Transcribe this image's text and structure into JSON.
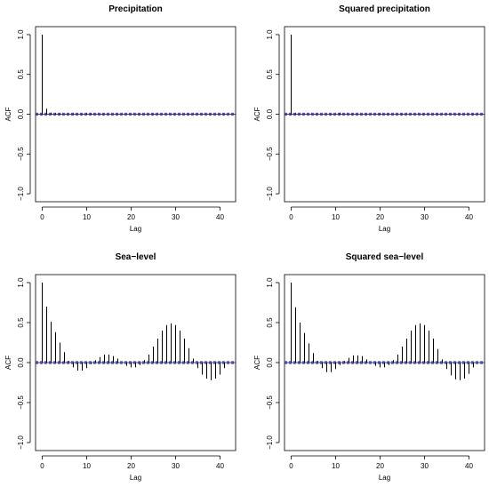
{
  "chart_data": [
    {
      "type": "bar",
      "title": "Precipitation",
      "xlabel": "Lag",
      "ylabel": "ACF",
      "xlim": [
        -1.5,
        43.5
      ],
      "ylim": [
        -1.1,
        1.1
      ],
      "xticks": [
        "0",
        "10",
        "20",
        "30",
        "40"
      ],
      "yticks": [
        "−1.0",
        "−0.5",
        "0.0",
        "0.5",
        "1.0"
      ],
      "confidence_bound": 0.012,
      "x": [
        0,
        1,
        2,
        3,
        4,
        5,
        6,
        7,
        8,
        9,
        10,
        11,
        12,
        13,
        14,
        15,
        16,
        17,
        18,
        19,
        20,
        21,
        22,
        23,
        24,
        25,
        26,
        27,
        28,
        29,
        30,
        31,
        32,
        33,
        34,
        35,
        36,
        37,
        38,
        39,
        40,
        41,
        42,
        43
      ],
      "values": [
        1.0,
        0.07,
        0.02,
        0.01,
        0.01,
        0.0,
        0.0,
        0.01,
        0.0,
        0.0,
        0.01,
        0.01,
        0.0,
        0.0,
        0.0,
        0.0,
        0.0,
        0.0,
        0.0,
        0.0,
        0.0,
        0.0,
        0.0,
        0.0,
        0.0,
        0.0,
        0.0,
        0.0,
        0.0,
        0.0,
        0.0,
        0.0,
        0.0,
        0.0,
        0.0,
        0.0,
        0.0,
        0.0,
        0.0,
        0.0,
        0.0,
        0.0,
        0.0,
        0.0
      ]
    },
    {
      "type": "bar",
      "title": "Squared precipitation",
      "xlabel": "Lag",
      "ylabel": "ACF",
      "xlim": [
        -1.5,
        43.5
      ],
      "ylim": [
        -1.1,
        1.1
      ],
      "xticks": [
        "0",
        "10",
        "20",
        "30",
        "40"
      ],
      "yticks": [
        "−1.0",
        "−0.5",
        "0.0",
        "0.5",
        "1.0"
      ],
      "confidence_bound": 0.012,
      "x": [
        0,
        1,
        2,
        3,
        4,
        5,
        6,
        7,
        8,
        9,
        10,
        11,
        12,
        13,
        14,
        15,
        16,
        17,
        18,
        19,
        20,
        21,
        22,
        23,
        24,
        25,
        26,
        27,
        28,
        29,
        30,
        31,
        32,
        33,
        34,
        35,
        36,
        37,
        38,
        39,
        40,
        41,
        42,
        43
      ],
      "values": [
        1.0,
        0.01,
        0.0,
        0.0,
        0.0,
        0.0,
        0.0,
        0.0,
        0.0,
        0.0,
        0.0,
        0.02,
        0.0,
        0.0,
        0.0,
        0.0,
        0.0,
        0.0,
        0.0,
        0.0,
        0.01,
        0.0,
        0.0,
        0.0,
        0.0,
        0.0,
        0.0,
        0.0,
        0.0,
        0.0,
        0.0,
        0.0,
        0.0,
        0.0,
        0.0,
        0.0,
        0.0,
        0.0,
        0.0,
        0.0,
        0.0,
        0.0,
        0.0,
        0.0
      ]
    },
    {
      "type": "bar",
      "title": "Sea−level",
      "xlabel": "Lag",
      "ylabel": "ACF",
      "xlim": [
        -1.5,
        43.5
      ],
      "ylim": [
        -1.1,
        1.1
      ],
      "xticks": [
        "0",
        "10",
        "20",
        "30",
        "40"
      ],
      "yticks": [
        "−1.0",
        "−0.5",
        "0.0",
        "0.5",
        "1.0"
      ],
      "confidence_bound": 0.012,
      "x": [
        0,
        1,
        2,
        3,
        4,
        5,
        6,
        7,
        8,
        9,
        10,
        11,
        12,
        13,
        14,
        15,
        16,
        17,
        18,
        19,
        20,
        21,
        22,
        23,
        24,
        25,
        26,
        27,
        28,
        29,
        30,
        31,
        32,
        33,
        34,
        35,
        36,
        37,
        38,
        39,
        40,
        41,
        42,
        43
      ],
      "values": [
        1.0,
        0.7,
        0.51,
        0.38,
        0.25,
        0.13,
        0.02,
        -0.06,
        -0.1,
        -0.1,
        -0.07,
        -0.02,
        0.03,
        0.07,
        0.1,
        0.1,
        0.08,
        0.05,
        0.0,
        -0.04,
        -0.06,
        -0.06,
        -0.03,
        0.03,
        0.1,
        0.2,
        0.3,
        0.4,
        0.47,
        0.49,
        0.47,
        0.4,
        0.3,
        0.18,
        0.05,
        -0.07,
        -0.15,
        -0.2,
        -0.22,
        -0.2,
        -0.15,
        -0.07,
        0.0,
        0.0
      ]
    },
    {
      "type": "bar",
      "title": "Squared sea−level",
      "xlabel": "Lag",
      "ylabel": "ACF",
      "xlim": [
        -1.5,
        43.5
      ],
      "ylim": [
        -1.1,
        1.1
      ],
      "xticks": [
        "0",
        "10",
        "20",
        "30",
        "40"
      ],
      "yticks": [
        "−1.0",
        "−0.5",
        "0.0",
        "0.5",
        "1.0"
      ],
      "confidence_bound": 0.012,
      "x": [
        0,
        1,
        2,
        3,
        4,
        5,
        6,
        7,
        8,
        9,
        10,
        11,
        12,
        13,
        14,
        15,
        16,
        17,
        18,
        19,
        20,
        21,
        22,
        23,
        24,
        25,
        26,
        27,
        28,
        29,
        30,
        31,
        32,
        33,
        34,
        35,
        36,
        37,
        38,
        39,
        40,
        41,
        42,
        43
      ],
      "values": [
        1.0,
        0.69,
        0.5,
        0.37,
        0.24,
        0.12,
        0.02,
        -0.07,
        -0.12,
        -0.12,
        -0.08,
        -0.03,
        0.02,
        0.06,
        0.09,
        0.09,
        0.08,
        0.04,
        0.0,
        -0.04,
        -0.06,
        -0.06,
        -0.03,
        0.03,
        0.1,
        0.2,
        0.3,
        0.4,
        0.47,
        0.49,
        0.47,
        0.4,
        0.3,
        0.17,
        0.04,
        -0.08,
        -0.16,
        -0.21,
        -0.22,
        -0.2,
        -0.14,
        -0.06,
        0.0,
        0.0
      ]
    }
  ],
  "colors": {
    "bars": "#000000",
    "confidence_band": "#3b3bd6",
    "zero_line": "#000000"
  }
}
